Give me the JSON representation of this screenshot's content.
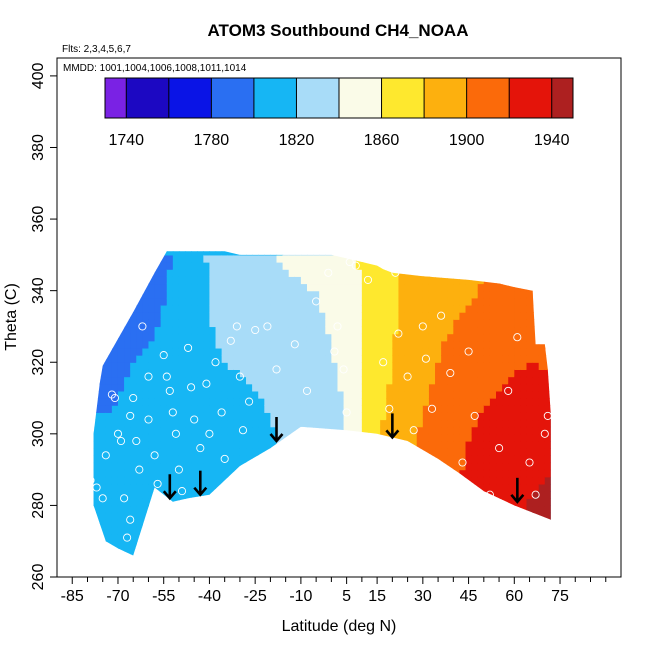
{
  "chart_data": {
    "type": "heatmap",
    "title": "ATOM3 Southbound CH4_NOAA",
    "subtitle_flights": "Flts: 2,3,4,5,6,7",
    "subtitle_dates": "MMDD: 1001,1004,1006,1008,1011,1014",
    "xlabel": "Latitude (deg N)",
    "ylabel": "Theta (C)",
    "xlim": [
      -90,
      95
    ],
    "ylim": [
      260,
      405
    ],
    "x_ticks": [
      -85,
      -70,
      -55,
      -40,
      -25,
      -10,
      5,
      15,
      30,
      45,
      60,
      75
    ],
    "x_minor_ticks": [
      -80,
      -75,
      -65,
      -60,
      -50,
      -45,
      -35,
      -30,
      -20,
      -15,
      -5,
      0,
      10,
      20,
      25,
      35,
      40,
      50,
      55,
      65,
      70,
      80,
      85,
      90
    ],
    "y_ticks": [
      260,
      280,
      300,
      320,
      340,
      360,
      380,
      400
    ],
    "colorbar": {
      "min": 1730,
      "max": 1950,
      "ticks": [
        1740,
        1780,
        1820,
        1860,
        1900,
        1940
      ],
      "bins": [
        1730,
        1740,
        1760,
        1780,
        1800,
        1820,
        1840,
        1860,
        1880,
        1900,
        1920,
        1940,
        1950
      ],
      "colors": [
        "#7a22e4",
        "#1c08c2",
        "#0a14e6",
        "#2a6ff2",
        "#16b6f4",
        "#a8dcf8",
        "#fafbe8",
        "#fee82e",
        "#fdb00e",
        "#fb6a0a",
        "#e4140a",
        "#ad2020"
      ]
    },
    "ch4_field": {
      "description": "interpolated CH4 (ppb) vs latitude and theta",
      "lat_nodes": [
        -75,
        -65,
        -55,
        -45,
        -35,
        -25,
        -15,
        -5,
        5,
        15,
        25,
        35,
        45,
        55,
        65,
        72
      ],
      "theta_nodes": [
        275,
        290,
        305,
        320,
        335,
        350
      ],
      "values": [
        [
          1800,
          1805,
          1808,
          1810,
          1812,
          1815,
          1820,
          1830,
          1840,
          1890,
          1905,
          1915,
          1925,
          1935,
          1942,
          1942
        ],
        [
          1800,
          1805,
          1808,
          1810,
          1812,
          1815,
          1820,
          1830,
          1840,
          1885,
          1900,
          1912,
          1922,
          1930,
          1938,
          1940
        ],
        [
          1800,
          1805,
          1808,
          1812,
          1815,
          1818,
          1822,
          1830,
          1840,
          1875,
          1895,
          1905,
          1918,
          1925,
          1932,
          1935
        ],
        [
          1790,
          1800,
          1808,
          1815,
          1820,
          1822,
          1825,
          1832,
          1845,
          1870,
          1890,
          1900,
          1910,
          1915,
          1920,
          1918
        ],
        [
          1770,
          1785,
          1800,
          1815,
          1825,
          1832,
          1835,
          1838,
          1850,
          1868,
          1885,
          1895,
          1900,
          1905,
          1908,
          1905
        ],
        [
          1750,
          1770,
          1795,
          1815,
          1828,
          1838,
          1842,
          1845,
          1855,
          1870,
          1885,
          1892,
          1895,
          1900,
          1900,
          1900
        ]
      ]
    },
    "domain_boundary": {
      "description": "approximate extent of interpolated field (lat, theta)",
      "top": [
        [
          -75,
          319
        ],
        [
          -65,
          334
        ],
        [
          -58,
          345
        ],
        [
          -54,
          351
        ],
        [
          -35,
          351
        ],
        [
          -30,
          350
        ],
        [
          -20,
          350
        ],
        [
          -10,
          350
        ],
        [
          0,
          350
        ],
        [
          5,
          349
        ],
        [
          10,
          348
        ],
        [
          15,
          347
        ],
        [
          17,
          346
        ],
        [
          20,
          345
        ],
        [
          30,
          344
        ],
        [
          45,
          343
        ],
        [
          55,
          342
        ],
        [
          60,
          341
        ],
        [
          66,
          340
        ],
        [
          67,
          325
        ],
        [
          70,
          325
        ],
        [
          71,
          318
        ],
        [
          72,
          305
        ]
      ],
      "bottom": [
        [
          72,
          276
        ],
        [
          60,
          280
        ],
        [
          50,
          284
        ],
        [
          42,
          289
        ],
        [
          35,
          293
        ],
        [
          25,
          298
        ],
        [
          15,
          300
        ],
        [
          5,
          301
        ],
        [
          -10,
          302
        ],
        [
          -20,
          296
        ],
        [
          -30,
          291
        ],
        [
          -40,
          283
        ],
        [
          -47,
          282
        ],
        [
          -52,
          281
        ],
        [
          -58,
          285
        ],
        [
          -65,
          266
        ],
        [
          -70,
          268
        ],
        [
          -74,
          270
        ],
        [
          -78,
          280
        ],
        [
          -78,
          300
        ],
        [
          -76,
          314
        ]
      ]
    },
    "observation_points": [
      [
        -79,
        287
      ],
      [
        -78,
        275
      ],
      [
        -77,
        285
      ],
      [
        -76,
        269
      ],
      [
        -75,
        282
      ],
      [
        -74,
        294
      ],
      [
        -72,
        311
      ],
      [
        -71,
        310
      ],
      [
        -70,
        300
      ],
      [
        -69,
        298
      ],
      [
        -68,
        282
      ],
      [
        -67,
        271
      ],
      [
        -66,
        276
      ],
      [
        -66,
        305
      ],
      [
        -65,
        310
      ],
      [
        -64,
        298
      ],
      [
        -63,
        290
      ],
      [
        -62,
        330
      ],
      [
        -60,
        316
      ],
      [
        -60,
        304
      ],
      [
        -58,
        294
      ],
      [
        -57,
        286
      ],
      [
        -56,
        281
      ],
      [
        -55,
        322
      ],
      [
        -54,
        316
      ],
      [
        -53,
        312
      ],
      [
        -52,
        306
      ],
      [
        -51,
        300
      ],
      [
        -50,
        290
      ],
      [
        -49,
        284
      ],
      [
        -47,
        324
      ],
      [
        -46,
        313
      ],
      [
        -45,
        304
      ],
      [
        -43,
        296
      ],
      [
        -41,
        314
      ],
      [
        -40,
        300
      ],
      [
        -38,
        320
      ],
      [
        -36,
        306
      ],
      [
        -35,
        293
      ],
      [
        -33,
        326
      ],
      [
        -31,
        330
      ],
      [
        -30,
        316
      ],
      [
        -29,
        301
      ],
      [
        -27,
        309
      ],
      [
        -25,
        329
      ],
      [
        -21,
        330
      ],
      [
        -18,
        318
      ],
      [
        -12,
        325
      ],
      [
        -8,
        312
      ],
      [
        -5,
        337
      ],
      [
        -3,
        300
      ],
      [
        -1,
        345
      ],
      [
        1,
        323
      ],
      [
        2,
        330
      ],
      [
        4,
        318
      ],
      [
        5,
        306
      ],
      [
        6,
        348
      ],
      [
        8,
        347
      ],
      [
        12,
        343
      ],
      [
        17,
        320
      ],
      [
        19,
        307
      ],
      [
        21,
        345
      ],
      [
        22,
        328
      ],
      [
        25,
        316
      ],
      [
        27,
        301
      ],
      [
        30,
        330
      ],
      [
        31,
        321
      ],
      [
        33,
        307
      ],
      [
        36,
        333
      ],
      [
        39,
        317
      ],
      [
        43,
        292
      ],
      [
        45,
        323
      ],
      [
        47,
        305
      ],
      [
        52,
        283
      ],
      [
        55,
        296
      ],
      [
        58,
        312
      ],
      [
        61,
        327
      ],
      [
        65,
        292
      ],
      [
        67,
        283
      ],
      [
        70,
        300
      ],
      [
        71,
        305
      ]
    ],
    "arrows": [
      {
        "lat": -53,
        "theta": 282
      },
      {
        "lat": -43,
        "theta": 283
      },
      {
        "lat": -18,
        "theta": 298
      },
      {
        "lat": 20,
        "theta": 299
      },
      {
        "lat": 61,
        "theta": 281
      }
    ]
  }
}
